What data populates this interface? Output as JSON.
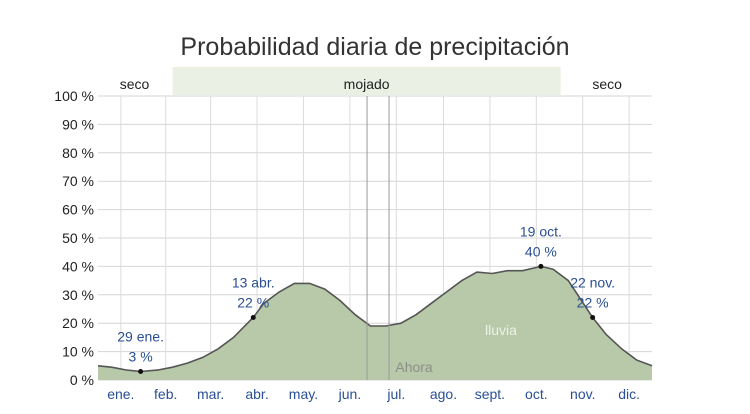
{
  "chart_data": {
    "type": "area",
    "title": "Probabilidad diaria de precipitación",
    "xlabel": "",
    "ylabel": "",
    "ylim": [
      0,
      100
    ],
    "y_ticks": [
      "0 %",
      "10 %",
      "20 %",
      "30 %",
      "40 %",
      "50 %",
      "60 %",
      "70 %",
      "80 %",
      "90 %",
      "100 %"
    ],
    "months": [
      "ene.",
      "feb.",
      "mar.",
      "abr.",
      "may.",
      "jun.",
      "jul.",
      "ago.",
      "sept.",
      "oct.",
      "nov.",
      "dic."
    ],
    "seasons": [
      {
        "label": "seco",
        "start_day": 1,
        "end_day": 49,
        "wet": false
      },
      {
        "label": "mojado",
        "start_day": 50,
        "end_day": 305,
        "wet": true
      },
      {
        "label": "seco",
        "start_day": 306,
        "end_day": 365,
        "wet": false
      }
    ],
    "series": [
      {
        "name": "lluvia",
        "label": "lluvia",
        "color": "#b7c9a8",
        "line_color": "#555555",
        "day": [
          1,
          10,
          20,
          29,
          40,
          50,
          60,
          70,
          80,
          90,
          103,
          110,
          120,
          130,
          140,
          150,
          160,
          170,
          180,
          190,
          200,
          210,
          220,
          230,
          240,
          250,
          260,
          270,
          280,
          292,
          300,
          310,
          326,
          335,
          345,
          355,
          365
        ],
        "values": [
          5,
          4.5,
          3.5,
          3,
          3.5,
          4.5,
          6,
          8,
          11,
          15,
          22,
          27,
          31,
          34,
          34,
          32,
          28,
          23,
          19,
          19,
          20,
          23,
          27,
          31,
          35,
          38,
          37.5,
          38.5,
          38.5,
          40,
          39,
          35,
          22,
          16,
          11,
          7,
          5
        ]
      }
    ],
    "annotations": [
      {
        "date": "29 ene.",
        "value": "3 %",
        "day": 29,
        "y": 3,
        "position": "above"
      },
      {
        "date": "13 abr.",
        "value": "22 %",
        "day": 103,
        "y": 22,
        "position": "above"
      },
      {
        "date": "19 oct.",
        "value": "40 %",
        "day": 292,
        "y": 40,
        "position": "above"
      },
      {
        "date": "22 nov.",
        "value": "22 %",
        "day": 326,
        "y": 22,
        "position": "above"
      }
    ],
    "now_label": "Ahora",
    "now_day": 185,
    "grid": true
  }
}
